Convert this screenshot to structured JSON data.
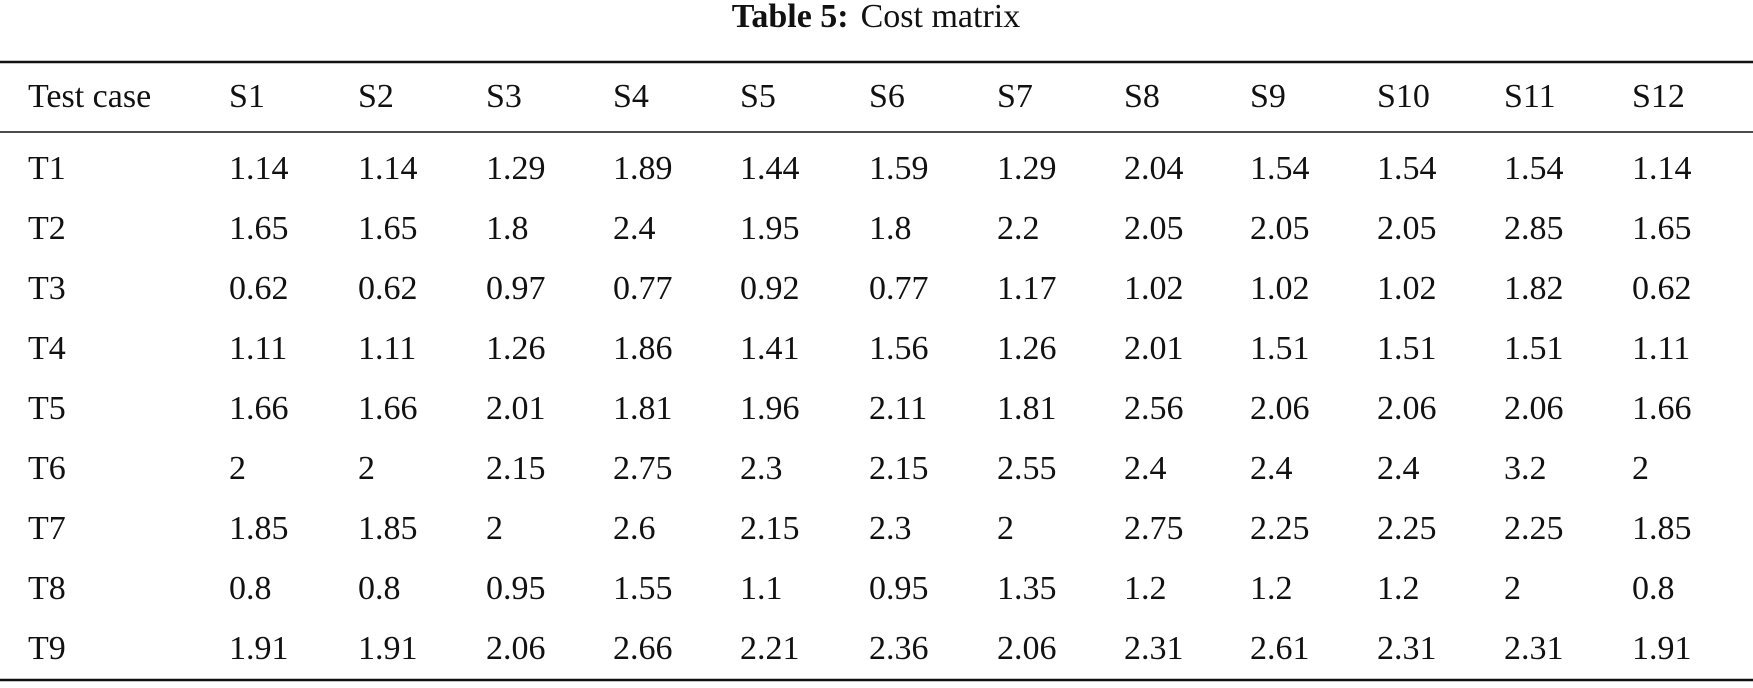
{
  "caption": {
    "label": "Table 5:",
    "text": "Cost matrix"
  },
  "table": {
    "columns": [
      "Test case",
      "S1",
      "S2",
      "S3",
      "S4",
      "S5",
      "S6",
      "S7",
      "S8",
      "S9",
      "S10",
      "S11",
      "S12"
    ],
    "rows": [
      [
        "T1",
        "1.14",
        "1.14",
        "1.29",
        "1.89",
        "1.44",
        "1.59",
        "1.29",
        "2.04",
        "1.54",
        "1.54",
        "1.54",
        "1.14"
      ],
      [
        "T2",
        "1.65",
        "1.65",
        "1.8",
        "2.4",
        "1.95",
        "1.8",
        "2.2",
        "2.05",
        "2.05",
        "2.05",
        "2.85",
        "1.65"
      ],
      [
        "T3",
        "0.62",
        "0.62",
        "0.97",
        "0.77",
        "0.92",
        "0.77",
        "1.17",
        "1.02",
        "1.02",
        "1.02",
        "1.82",
        "0.62"
      ],
      [
        "T4",
        "1.11",
        "1.11",
        "1.26",
        "1.86",
        "1.41",
        "1.56",
        "1.26",
        "2.01",
        "1.51",
        "1.51",
        "1.51",
        "1.11"
      ],
      [
        "T5",
        "1.66",
        "1.66",
        "2.01",
        "1.81",
        "1.96",
        "2.11",
        "1.81",
        "2.56",
        "2.06",
        "2.06",
        "2.06",
        "1.66"
      ],
      [
        "T6",
        "2",
        "2",
        "2.15",
        "2.75",
        "2.3",
        "2.15",
        "2.55",
        "2.4",
        "2.4",
        "2.4",
        "3.2",
        "2"
      ],
      [
        "T7",
        "1.85",
        "1.85",
        "2",
        "2.6",
        "2.15",
        "2.3",
        "2",
        "2.75",
        "2.25",
        "2.25",
        "2.25",
        "1.85"
      ],
      [
        "T8",
        "0.8",
        "0.8",
        "0.95",
        "1.55",
        "1.1",
        "0.95",
        "1.35",
        "1.2",
        "1.2",
        "1.2",
        "2",
        "0.8"
      ],
      [
        "T9",
        "1.91",
        "1.91",
        "2.06",
        "2.66",
        "2.21",
        "2.36",
        "2.06",
        "2.31",
        "2.61",
        "2.31",
        "2.31",
        "1.91"
      ]
    ]
  }
}
